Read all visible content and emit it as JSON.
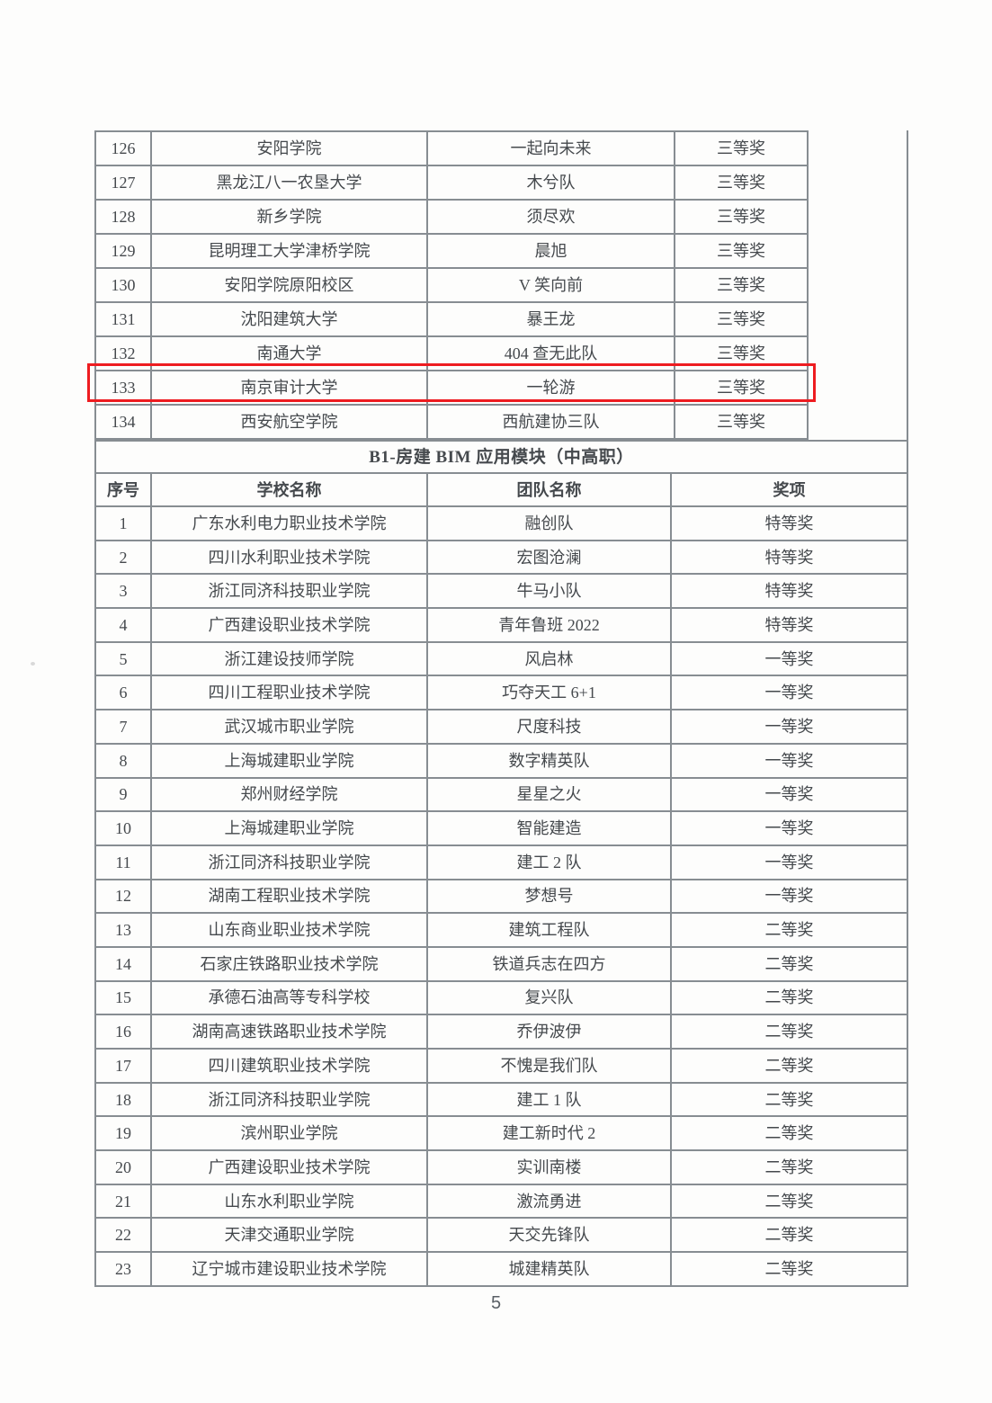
{
  "page": {
    "number": "5"
  },
  "section": {
    "title": "B1-房建 BIM 应用模块（中高职）",
    "headers": {
      "no": "序号",
      "school": "学校名称",
      "team": "团队名称",
      "award": "奖项"
    }
  },
  "highlight": {
    "row_no": "133",
    "color": "#ee1c20"
  },
  "colors": {
    "border": "#878d92",
    "text": "#45494d"
  },
  "table1": {
    "rows": [
      {
        "no": "126",
        "school": "安阳学院",
        "team": "一起向未来",
        "award": "三等奖"
      },
      {
        "no": "127",
        "school": "黑龙江八一农垦大学",
        "team": "木兮队",
        "award": "三等奖"
      },
      {
        "no": "128",
        "school": "新乡学院",
        "team": "须尽欢",
        "award": "三等奖"
      },
      {
        "no": "129",
        "school": "昆明理工大学津桥学院",
        "team": "晨旭",
        "award": "三等奖"
      },
      {
        "no": "130",
        "school": "安阳学院原阳校区",
        "team": "V 笑向前",
        "award": "三等奖"
      },
      {
        "no": "131",
        "school": "沈阳建筑大学",
        "team": "暴王龙",
        "award": "三等奖"
      },
      {
        "no": "132",
        "school": "南通大学",
        "team": "404 查无此队",
        "award": "三等奖"
      },
      {
        "no": "133",
        "school": "南京审计大学",
        "team": "一轮游",
        "award": "三等奖"
      },
      {
        "no": "134",
        "school": "西安航空学院",
        "team": "西航建协三队",
        "award": "三等奖"
      }
    ]
  },
  "table2": {
    "rows": [
      {
        "no": "1",
        "school": "广东水利电力职业技术学院",
        "team": "融创队",
        "award": "特等奖"
      },
      {
        "no": "2",
        "school": "四川水利职业技术学院",
        "team": "宏图沧澜",
        "award": "特等奖"
      },
      {
        "no": "3",
        "school": "浙江同济科技职业学院",
        "team": "牛马小队",
        "award": "特等奖"
      },
      {
        "no": "4",
        "school": "广西建设职业技术学院",
        "team": "青年鲁班 2022",
        "award": "特等奖"
      },
      {
        "no": "5",
        "school": "浙江建设技师学院",
        "team": "风启林",
        "award": "一等奖"
      },
      {
        "no": "6",
        "school": "四川工程职业技术学院",
        "team": "巧夺天工 6+1",
        "award": "一等奖"
      },
      {
        "no": "7",
        "school": "武汉城市职业学院",
        "team": "尺度科技",
        "award": "一等奖"
      },
      {
        "no": "8",
        "school": "上海城建职业学院",
        "team": "数字精英队",
        "award": "一等奖"
      },
      {
        "no": "9",
        "school": "郑州财经学院",
        "team": "星星之火",
        "award": "一等奖"
      },
      {
        "no": "10",
        "school": "上海城建职业学院",
        "team": "智能建造",
        "award": "一等奖"
      },
      {
        "no": "11",
        "school": "浙江同济科技职业学院",
        "team": "建工 2 队",
        "award": "一等奖"
      },
      {
        "no": "12",
        "school": "湖南工程职业技术学院",
        "team": "梦想号",
        "award": "一等奖"
      },
      {
        "no": "13",
        "school": "山东商业职业技术学院",
        "team": "建筑工程队",
        "award": "二等奖"
      },
      {
        "no": "14",
        "school": "石家庄铁路职业技术学院",
        "team": "铁道兵志在四方",
        "award": "二等奖"
      },
      {
        "no": "15",
        "school": "承德石油高等专科学校",
        "team": "复兴队",
        "award": "二等奖"
      },
      {
        "no": "16",
        "school": "湖南高速铁路职业技术学院",
        "team": "乔伊波伊",
        "award": "二等奖"
      },
      {
        "no": "17",
        "school": "四川建筑职业技术学院",
        "team": "不愧是我们队",
        "award": "二等奖"
      },
      {
        "no": "18",
        "school": "浙江同济科技职业学院",
        "team": "建工 1 队",
        "award": "二等奖"
      },
      {
        "no": "19",
        "school": "滨州职业学院",
        "team": "建工新时代 2",
        "award": "二等奖"
      },
      {
        "no": "20",
        "school": "广西建设职业技术学院",
        "team": "实训南楼",
        "award": "二等奖"
      },
      {
        "no": "21",
        "school": "山东水利职业学院",
        "team": "激流勇进",
        "award": "二等奖"
      },
      {
        "no": "22",
        "school": "天津交通职业学院",
        "team": "天交先锋队",
        "award": "二等奖"
      },
      {
        "no": "23",
        "school": "辽宁城市建设职业技术学院",
        "team": "城建精英队",
        "award": "二等奖"
      }
    ]
  }
}
